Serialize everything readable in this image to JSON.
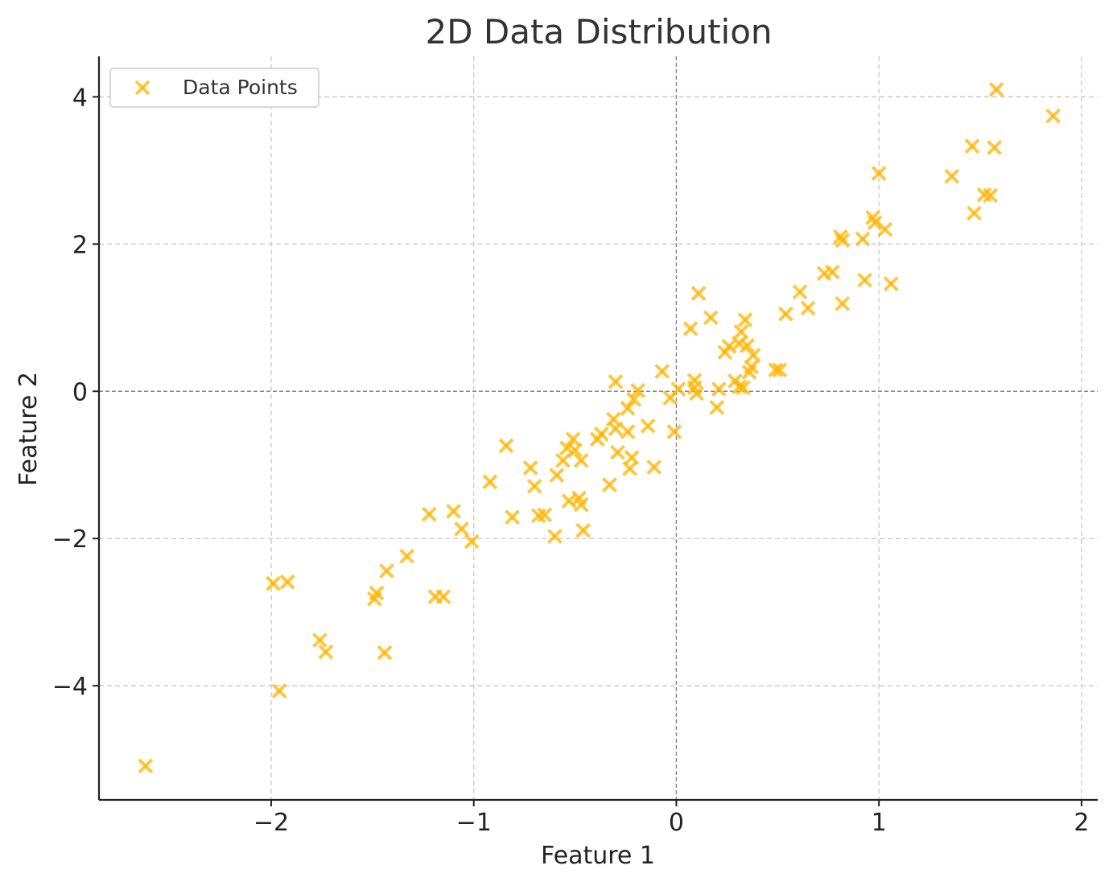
{
  "chart_data": {
    "type": "scatter",
    "title": "2D Data Distribution",
    "xlabel": "Feature 1",
    "ylabel": "Feature 2",
    "xlim": [
      -2.85,
      2.08
    ],
    "ylim": [
      -5.55,
      4.55
    ],
    "xticks": [
      -2,
      -1,
      0,
      1,
      2
    ],
    "yticks": [
      -4,
      -2,
      0,
      2,
      4
    ],
    "xtick_labels": [
      "−2",
      "−1",
      "0",
      "1",
      "2"
    ],
    "ytick_labels": [
      "−4",
      "−2",
      "0",
      "2",
      "4"
    ],
    "grid": true,
    "zero_lines": true,
    "legend": {
      "position": "top-left",
      "entries": [
        "Data Points"
      ]
    },
    "marker": "x",
    "color": "#FFB400",
    "series": [
      {
        "name": "Data Points",
        "points": [
          [
            -2.62,
            -5.09
          ],
          [
            -1.99,
            -2.61
          ],
          [
            -1.92,
            -2.59
          ],
          [
            -1.96,
            -4.07
          ],
          [
            -1.76,
            -3.38
          ],
          [
            -1.73,
            -3.54
          ],
          [
            -1.49,
            -2.82
          ],
          [
            -1.48,
            -2.74
          ],
          [
            -1.43,
            -2.44
          ],
          [
            -1.44,
            -3.55
          ],
          [
            -1.33,
            -2.24
          ],
          [
            -1.22,
            -1.67
          ],
          [
            -1.19,
            -2.79
          ],
          [
            -1.15,
            -2.79
          ],
          [
            -1.1,
            -1.63
          ],
          [
            -1.06,
            -1.87
          ],
          [
            -1.01,
            -2.04
          ],
          [
            -0.92,
            -1.23
          ],
          [
            -0.84,
            -0.74
          ],
          [
            -0.81,
            -1.71
          ],
          [
            -0.72,
            -1.04
          ],
          [
            -0.7,
            -1.29
          ],
          [
            -0.68,
            -1.69
          ],
          [
            -0.65,
            -1.68
          ],
          [
            -0.6,
            -1.97
          ],
          [
            -0.59,
            -1.14
          ],
          [
            -0.56,
            -0.94
          ],
          [
            -0.54,
            -0.77
          ],
          [
            -0.53,
            -1.49
          ],
          [
            -0.51,
            -0.65
          ],
          [
            -0.5,
            -0.8
          ],
          [
            -0.48,
            -1.45
          ],
          [
            -0.47,
            -0.94
          ],
          [
            -0.47,
            -1.54
          ],
          [
            -0.46,
            -1.89
          ],
          [
            -0.39,
            -0.65
          ],
          [
            -0.37,
            -0.58
          ],
          [
            -0.33,
            -1.27
          ],
          [
            -0.31,
            -0.38
          ],
          [
            -0.3,
            -0.51
          ],
          [
            -0.3,
            0.13
          ],
          [
            -0.29,
            -0.83
          ],
          [
            -0.24,
            -0.55
          ],
          [
            -0.24,
            -0.23
          ],
          [
            -0.23,
            -1.05
          ],
          [
            -0.22,
            -0.9
          ],
          [
            -0.21,
            -0.11
          ],
          [
            -0.19,
            0.01
          ],
          [
            -0.14,
            -0.47
          ],
          [
            -0.11,
            -1.03
          ],
          [
            -0.07,
            0.27
          ],
          [
            -0.03,
            -0.09
          ],
          [
            -0.01,
            -0.55
          ],
          [
            0.01,
            0.03
          ],
          [
            0.07,
            0.85
          ],
          [
            0.09,
            0.15
          ],
          [
            0.09,
            0.05
          ],
          [
            0.1,
            -0.03
          ],
          [
            0.11,
            1.33
          ],
          [
            0.17,
            1.0
          ],
          [
            0.2,
            -0.22
          ],
          [
            0.21,
            0.03
          ],
          [
            0.24,
            0.53
          ],
          [
            0.26,
            0.61
          ],
          [
            0.29,
            0.14
          ],
          [
            0.31,
            0.65
          ],
          [
            0.31,
            0.06
          ],
          [
            0.32,
            0.81
          ],
          [
            0.33,
            0.05
          ],
          [
            0.34,
            0.97
          ],
          [
            0.35,
            0.62
          ],
          [
            0.36,
            0.26
          ],
          [
            0.37,
            0.33
          ],
          [
            0.38,
            0.49
          ],
          [
            0.49,
            0.29
          ],
          [
            0.51,
            0.29
          ],
          [
            0.54,
            1.05
          ],
          [
            0.61,
            1.35
          ],
          [
            0.65,
            1.13
          ],
          [
            0.73,
            1.6
          ],
          [
            0.77,
            1.62
          ],
          [
            0.81,
            2.1
          ],
          [
            0.82,
            2.05
          ],
          [
            0.82,
            1.19
          ],
          [
            0.92,
            2.07
          ],
          [
            0.93,
            1.51
          ],
          [
            0.97,
            2.36
          ],
          [
            0.98,
            2.29
          ],
          [
            1.0,
            2.96
          ],
          [
            1.03,
            2.2
          ],
          [
            1.06,
            1.46
          ],
          [
            1.36,
            2.92
          ],
          [
            1.46,
            3.33
          ],
          [
            1.47,
            2.42
          ],
          [
            1.52,
            2.67
          ],
          [
            1.55,
            2.66
          ],
          [
            1.57,
            3.31
          ],
          [
            1.58,
            4.1
          ],
          [
            1.86,
            3.74
          ]
        ]
      }
    ]
  }
}
